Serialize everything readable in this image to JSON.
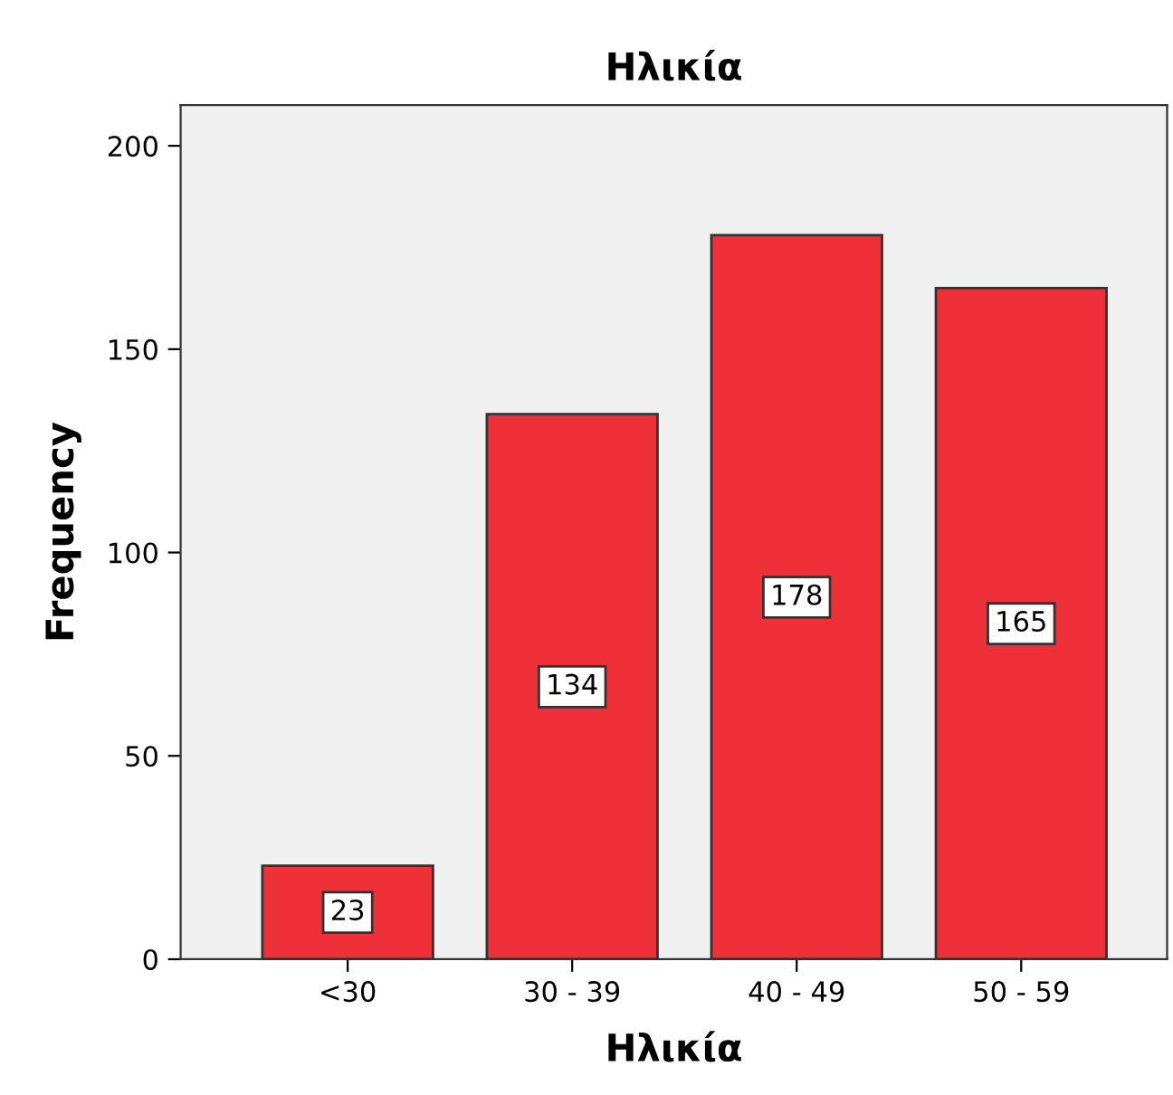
{
  "chart_data": {
    "type": "bar",
    "title": "Ηλικία",
    "xlabel": "Ηλικία",
    "ylabel": "Frequency",
    "categories": [
      "<30",
      "30 - 39",
      "40 - 49",
      "50 - 59"
    ],
    "values": [
      23,
      134,
      178,
      165
    ],
    "color": "#ef3038",
    "ylim": [
      0,
      210
    ],
    "yticks": [
      0,
      50,
      100,
      150,
      200
    ],
    "grid": false,
    "data_labels": true
  }
}
